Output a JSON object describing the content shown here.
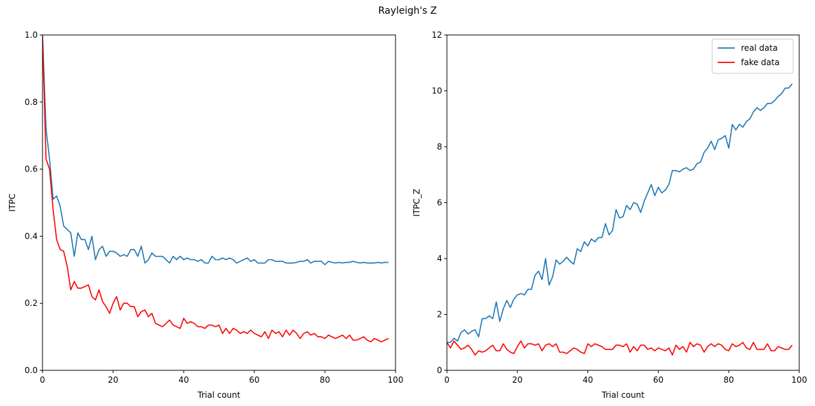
{
  "figure": {
    "suptitle": "Rayleigh's Z"
  },
  "chart_data": [
    {
      "type": "line",
      "title": "",
      "xlabel": "Trial count",
      "ylabel": "ITPC",
      "xlim": [
        0,
        100
      ],
      "ylim": [
        0,
        1.0
      ],
      "xticks": [
        0,
        20,
        40,
        60,
        80,
        100
      ],
      "yticks": [
        0.0,
        0.2,
        0.4,
        0.6,
        0.8,
        1.0
      ],
      "grid": false,
      "legend": null,
      "x": [
        0,
        1,
        2,
        3,
        4,
        5,
        6,
        7,
        8,
        9,
        10,
        11,
        12,
        13,
        14,
        15,
        16,
        17,
        18,
        19,
        20,
        21,
        22,
        23,
        24,
        25,
        26,
        27,
        28,
        29,
        30,
        31,
        32,
        33,
        34,
        35,
        36,
        37,
        38,
        39,
        40,
        41,
        42,
        43,
        44,
        45,
        46,
        47,
        48,
        49,
        50,
        51,
        52,
        53,
        54,
        55,
        56,
        57,
        58,
        59,
        60,
        61,
        62,
        63,
        64,
        65,
        66,
        67,
        68,
        69,
        70,
        71,
        72,
        73,
        74,
        75,
        76,
        77,
        78,
        79,
        80,
        81,
        82,
        83,
        84,
        85,
        86,
        87,
        88,
        89,
        90,
        91,
        92,
        93,
        94,
        95,
        96,
        97,
        98
      ],
      "series": [
        {
          "name": "real data",
          "color": "#1f77b4",
          "values": [
            1.0,
            0.72,
            0.63,
            0.51,
            0.52,
            0.49,
            0.43,
            0.42,
            0.41,
            0.34,
            0.41,
            0.39,
            0.39,
            0.36,
            0.4,
            0.33,
            0.36,
            0.37,
            0.34,
            0.355,
            0.355,
            0.35,
            0.34,
            0.345,
            0.34,
            0.36,
            0.36,
            0.34,
            0.37,
            0.32,
            0.33,
            0.35,
            0.34,
            0.34,
            0.34,
            0.33,
            0.32,
            0.34,
            0.33,
            0.34,
            0.33,
            0.335,
            0.33,
            0.33,
            0.325,
            0.33,
            0.32,
            0.32,
            0.34,
            0.33,
            0.33,
            0.335,
            0.33,
            0.335,
            0.33,
            0.32,
            0.325,
            0.33,
            0.335,
            0.325,
            0.33,
            0.32,
            0.32,
            0.32,
            0.33,
            0.33,
            0.325,
            0.325,
            0.325,
            0.32,
            0.32,
            0.32,
            0.322,
            0.325,
            0.325,
            0.33,
            0.32,
            0.325,
            0.325,
            0.325,
            0.315,
            0.325,
            0.322,
            0.32,
            0.322,
            0.32,
            0.322,
            0.322,
            0.325,
            0.322,
            0.32,
            0.322,
            0.32,
            0.32,
            0.32,
            0.322,
            0.32,
            0.322,
            0.322
          ]
        },
        {
          "name": "fake data",
          "color": "#ff0000",
          "values": [
            1.0,
            0.63,
            0.6,
            0.48,
            0.39,
            0.36,
            0.355,
            0.31,
            0.24,
            0.265,
            0.245,
            0.245,
            0.25,
            0.255,
            0.22,
            0.21,
            0.24,
            0.205,
            0.19,
            0.17,
            0.2,
            0.22,
            0.18,
            0.2,
            0.2,
            0.19,
            0.19,
            0.16,
            0.175,
            0.18,
            0.16,
            0.17,
            0.14,
            0.135,
            0.13,
            0.14,
            0.15,
            0.135,
            0.13,
            0.125,
            0.155,
            0.14,
            0.145,
            0.14,
            0.13,
            0.13,
            0.125,
            0.135,
            0.135,
            0.13,
            0.135,
            0.11,
            0.125,
            0.11,
            0.125,
            0.12,
            0.11,
            0.115,
            0.11,
            0.12,
            0.11,
            0.105,
            0.1,
            0.115,
            0.095,
            0.12,
            0.11,
            0.115,
            0.1,
            0.12,
            0.105,
            0.12,
            0.11,
            0.095,
            0.11,
            0.115,
            0.105,
            0.11,
            0.1,
            0.1,
            0.095,
            0.105,
            0.1,
            0.095,
            0.1,
            0.105,
            0.095,
            0.105,
            0.09,
            0.09,
            0.095,
            0.1,
            0.09,
            0.085,
            0.095,
            0.09,
            0.085,
            0.09,
            0.095
          ]
        }
      ]
    },
    {
      "type": "line",
      "title": "",
      "xlabel": "Trial count",
      "ylabel": "ITPC_Z",
      "xlim": [
        0,
        100
      ],
      "ylim": [
        0,
        12
      ],
      "xticks": [
        0,
        20,
        40,
        60,
        80,
        100
      ],
      "yticks": [
        0,
        2,
        4,
        6,
        8,
        10,
        12
      ],
      "grid": false,
      "legend": "top-right",
      "x": [
        0,
        1,
        2,
        3,
        4,
        5,
        6,
        7,
        8,
        9,
        10,
        11,
        12,
        13,
        14,
        15,
        16,
        17,
        18,
        19,
        20,
        21,
        22,
        23,
        24,
        25,
        26,
        27,
        28,
        29,
        30,
        31,
        32,
        33,
        34,
        35,
        36,
        37,
        38,
        39,
        40,
        41,
        42,
        43,
        44,
        45,
        46,
        47,
        48,
        49,
        50,
        51,
        52,
        53,
        54,
        55,
        56,
        57,
        58,
        59,
        60,
        61,
        62,
        63,
        64,
        65,
        66,
        67,
        68,
        69,
        70,
        71,
        72,
        73,
        74,
        75,
        76,
        77,
        78,
        79,
        80,
        81,
        82,
        83,
        84,
        85,
        86,
        87,
        88,
        89,
        90,
        91,
        92,
        93,
        94,
        95,
        96,
        97,
        98
      ],
      "series": [
        {
          "name": "real data",
          "color": "#1f77b4",
          "values": [
            1.0,
            1.0,
            1.15,
            1.05,
            1.35,
            1.45,
            1.3,
            1.4,
            1.45,
            1.2,
            1.85,
            1.85,
            1.95,
            1.85,
            2.45,
            1.75,
            2.2,
            2.5,
            2.25,
            2.55,
            2.7,
            2.75,
            2.7,
            2.9,
            2.9,
            3.4,
            3.55,
            3.25,
            4.0,
            3.05,
            3.35,
            3.95,
            3.8,
            3.9,
            4.05,
            3.9,
            3.8,
            4.35,
            4.25,
            4.6,
            4.45,
            4.7,
            4.6,
            4.75,
            4.75,
            5.25,
            4.85,
            5.0,
            5.75,
            5.45,
            5.5,
            5.9,
            5.75,
            6.0,
            5.95,
            5.65,
            6.05,
            6.35,
            6.65,
            6.25,
            6.55,
            6.35,
            6.45,
            6.65,
            7.15,
            7.15,
            7.1,
            7.2,
            7.25,
            7.15,
            7.2,
            7.4,
            7.45,
            7.8,
            7.95,
            8.2,
            7.9,
            8.25,
            8.3,
            8.4,
            7.95,
            8.8,
            8.6,
            8.8,
            8.7,
            8.9,
            9.0,
            9.25,
            9.4,
            9.3,
            9.4,
            9.55,
            9.55,
            9.65,
            9.8,
            9.9,
            10.1,
            10.1,
            10.25
          ]
        },
        {
          "name": "fake data",
          "color": "#ff0000",
          "values": [
            1.0,
            0.8,
            1.05,
            0.9,
            0.75,
            0.8,
            0.9,
            0.75,
            0.55,
            0.7,
            0.65,
            0.7,
            0.8,
            0.9,
            0.7,
            0.7,
            0.95,
            0.75,
            0.65,
            0.6,
            0.85,
            1.05,
            0.8,
            0.95,
            0.95,
            0.9,
            0.95,
            0.7,
            0.9,
            0.95,
            0.85,
            0.95,
            0.65,
            0.65,
            0.6,
            0.7,
            0.8,
            0.75,
            0.65,
            0.6,
            0.95,
            0.85,
            0.95,
            0.9,
            0.85,
            0.75,
            0.75,
            0.75,
            0.9,
            0.9,
            0.85,
            0.95,
            0.65,
            0.85,
            0.7,
            0.9,
            0.9,
            0.75,
            0.8,
            0.7,
            0.8,
            0.75,
            0.7,
            0.8,
            0.55,
            0.9,
            0.75,
            0.85,
            0.65,
            1.0,
            0.85,
            0.95,
            0.9,
            0.65,
            0.85,
            0.95,
            0.85,
            0.95,
            0.9,
            0.75,
            0.7,
            0.95,
            0.85,
            0.9,
            1.0,
            0.8,
            0.75,
            1.0,
            0.75,
            0.75,
            0.75,
            0.95,
            0.7,
            0.7,
            0.85,
            0.8,
            0.75,
            0.75,
            0.9
          ]
        }
      ]
    }
  ]
}
